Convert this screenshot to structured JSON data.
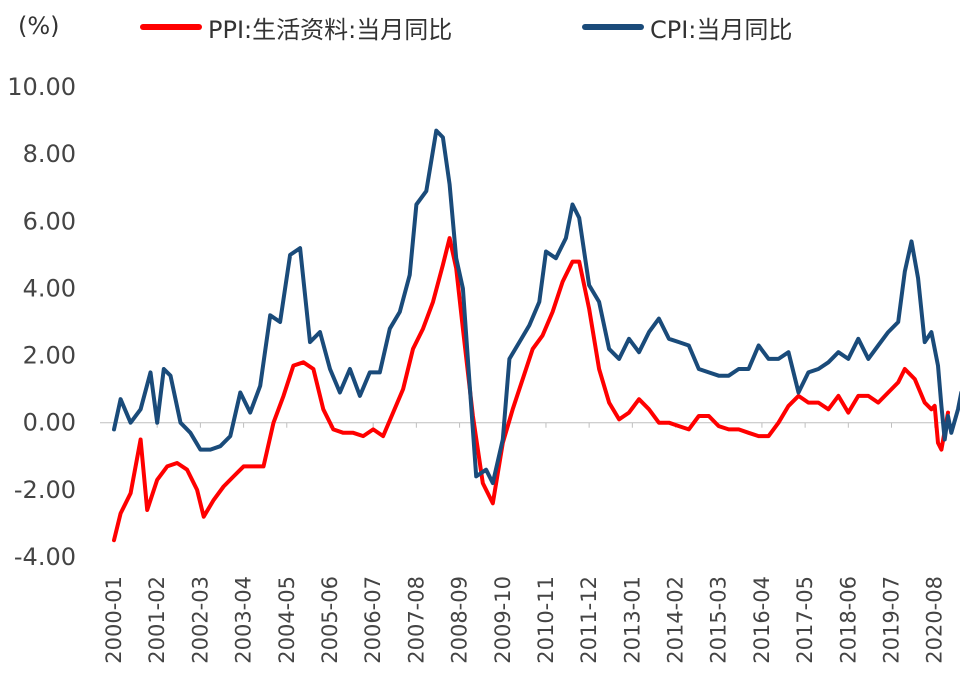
{
  "chart_data": {
    "type": "line",
    "title": "",
    "unit_label": "(%)",
    "xlabel": "",
    "ylabel": "",
    "ylim": [
      -4,
      10
    ],
    "yticks": [
      "10.00",
      "8.00",
      "6.00",
      "4.00",
      "2.00",
      "0.00",
      "-2.00",
      "-4.00"
    ],
    "x_tick_labels": [
      "2000-01",
      "2001-02",
      "2002-03",
      "2003-04",
      "2004-05",
      "2005-06",
      "2006-07",
      "2007-08",
      "2008-09",
      "2009-10",
      "2010-11",
      "2011-12",
      "2013-01",
      "2014-02",
      "2015-03",
      "2016-04",
      "2017-05",
      "2018-06",
      "2019-07",
      "2020-08"
    ],
    "x_start": "2000-01",
    "x_end": "2020-12",
    "grid": false,
    "legend_position": "top",
    "series": [
      {
        "name": "PPI:生活资料:当月同比",
        "color": "#ff0000",
        "points": [
          [
            "2000-01",
            -3.5
          ],
          [
            "2000-03",
            -2.7
          ],
          [
            "2000-06",
            -2.1
          ],
          [
            "2000-09",
            -0.5
          ],
          [
            "2000-11",
            -2.6
          ],
          [
            "2001-02",
            -1.7
          ],
          [
            "2001-05",
            -1.3
          ],
          [
            "2001-08",
            -1.2
          ],
          [
            "2001-11",
            -1.4
          ],
          [
            "2002-02",
            -2.0
          ],
          [
            "2002-04",
            -2.8
          ],
          [
            "2002-07",
            -2.3
          ],
          [
            "2002-10",
            -1.9
          ],
          [
            "2003-01",
            -1.6
          ],
          [
            "2003-04",
            -1.3
          ],
          [
            "2003-07",
            -1.3
          ],
          [
            "2003-10",
            -1.3
          ],
          [
            "2004-01",
            0.0
          ],
          [
            "2004-04",
            0.8
          ],
          [
            "2004-07",
            1.7
          ],
          [
            "2004-10",
            1.8
          ],
          [
            "2005-01",
            1.6
          ],
          [
            "2005-04",
            0.4
          ],
          [
            "2005-07",
            -0.2
          ],
          [
            "2005-10",
            -0.3
          ],
          [
            "2006-01",
            -0.3
          ],
          [
            "2006-04",
            -0.4
          ],
          [
            "2006-07",
            -0.2
          ],
          [
            "2006-10",
            -0.4
          ],
          [
            "2007-01",
            0.3
          ],
          [
            "2007-04",
            1.0
          ],
          [
            "2007-07",
            2.2
          ],
          [
            "2007-10",
            2.8
          ],
          [
            "2008-01",
            3.6
          ],
          [
            "2008-04",
            4.7
          ],
          [
            "2008-06",
            5.5
          ],
          [
            "2008-08",
            4.6
          ],
          [
            "2008-10",
            2.8
          ],
          [
            "2009-01",
            0.2
          ],
          [
            "2009-04",
            -1.8
          ],
          [
            "2009-07",
            -2.4
          ],
          [
            "2009-10",
            -0.6
          ],
          [
            "2010-01",
            0.4
          ],
          [
            "2010-04",
            1.3
          ],
          [
            "2010-07",
            2.2
          ],
          [
            "2010-10",
            2.6
          ],
          [
            "2011-01",
            3.3
          ],
          [
            "2011-04",
            4.2
          ],
          [
            "2011-07",
            4.8
          ],
          [
            "2011-09",
            4.8
          ],
          [
            "2011-12",
            3.4
          ],
          [
            "2012-03",
            1.6
          ],
          [
            "2012-06",
            0.6
          ],
          [
            "2012-09",
            0.1
          ],
          [
            "2012-12",
            0.3
          ],
          [
            "2013-03",
            0.7
          ],
          [
            "2013-06",
            0.4
          ],
          [
            "2013-09",
            0.0
          ],
          [
            "2013-12",
            0.0
          ],
          [
            "2014-03",
            -0.1
          ],
          [
            "2014-06",
            -0.2
          ],
          [
            "2014-09",
            0.2
          ],
          [
            "2014-12",
            0.2
          ],
          [
            "2015-03",
            -0.1
          ],
          [
            "2015-06",
            -0.2
          ],
          [
            "2015-09",
            -0.2
          ],
          [
            "2015-12",
            -0.3
          ],
          [
            "2016-03",
            -0.4
          ],
          [
            "2016-06",
            -0.4
          ],
          [
            "2016-09",
            0.0
          ],
          [
            "2016-12",
            0.5
          ],
          [
            "2017-03",
            0.8
          ],
          [
            "2017-06",
            0.6
          ],
          [
            "2017-09",
            0.6
          ],
          [
            "2017-12",
            0.4
          ],
          [
            "2018-03",
            0.8
          ],
          [
            "2018-06",
            0.3
          ],
          [
            "2018-09",
            0.8
          ],
          [
            "2018-12",
            0.8
          ],
          [
            "2019-03",
            0.6
          ],
          [
            "2019-06",
            0.9
          ],
          [
            "2019-09",
            1.2
          ],
          [
            "2019-11",
            1.6
          ],
          [
            "2020-02",
            1.3
          ],
          [
            "2020-05",
            0.6
          ],
          [
            "2020-07",
            0.4
          ],
          [
            "2020-08",
            0.5
          ],
          [
            "2020-09",
            -0.6
          ],
          [
            "2020-10",
            -0.8
          ],
          [
            "2020-12",
            0.3
          ]
        ]
      },
      {
        "name": "CPI:当月同比",
        "color": "#1a4b7a",
        "points": [
          [
            "2000-01",
            -0.2
          ],
          [
            "2000-03",
            0.7
          ],
          [
            "2000-06",
            0.0
          ],
          [
            "2000-09",
            0.4
          ],
          [
            "2000-12",
            1.5
          ],
          [
            "2001-02",
            0.0
          ],
          [
            "2001-04",
            1.6
          ],
          [
            "2001-06",
            1.4
          ],
          [
            "2001-09",
            0.0
          ],
          [
            "2001-12",
            -0.3
          ],
          [
            "2002-03",
            -0.8
          ],
          [
            "2002-06",
            -0.8
          ],
          [
            "2002-09",
            -0.7
          ],
          [
            "2002-12",
            -0.4
          ],
          [
            "2003-03",
            0.9
          ],
          [
            "2003-06",
            0.3
          ],
          [
            "2003-09",
            1.1
          ],
          [
            "2003-12",
            3.2
          ],
          [
            "2004-03",
            3.0
          ],
          [
            "2004-06",
            5.0
          ],
          [
            "2004-09",
            5.2
          ],
          [
            "2004-12",
            2.4
          ],
          [
            "2005-03",
            2.7
          ],
          [
            "2005-06",
            1.6
          ],
          [
            "2005-09",
            0.9
          ],
          [
            "2005-12",
            1.6
          ],
          [
            "2006-03",
            0.8
          ],
          [
            "2006-06",
            1.5
          ],
          [
            "2006-09",
            1.5
          ],
          [
            "2006-12",
            2.8
          ],
          [
            "2007-03",
            3.3
          ],
          [
            "2007-06",
            4.4
          ],
          [
            "2007-08",
            6.5
          ],
          [
            "2007-11",
            6.9
          ],
          [
            "2008-02",
            8.7
          ],
          [
            "2008-04",
            8.5
          ],
          [
            "2008-06",
            7.1
          ],
          [
            "2008-08",
            4.9
          ],
          [
            "2008-10",
            4.0
          ],
          [
            "2008-12",
            1.2
          ],
          [
            "2009-02",
            -1.6
          ],
          [
            "2009-05",
            -1.4
          ],
          [
            "2009-07",
            -1.8
          ],
          [
            "2009-10",
            -0.5
          ],
          [
            "2009-12",
            1.9
          ],
          [
            "2010-03",
            2.4
          ],
          [
            "2010-06",
            2.9
          ],
          [
            "2010-09",
            3.6
          ],
          [
            "2010-11",
            5.1
          ],
          [
            "2011-02",
            4.9
          ],
          [
            "2011-05",
            5.5
          ],
          [
            "2011-07",
            6.5
          ],
          [
            "2011-09",
            6.1
          ],
          [
            "2011-12",
            4.1
          ],
          [
            "2012-03",
            3.6
          ],
          [
            "2012-06",
            2.2
          ],
          [
            "2012-09",
            1.9
          ],
          [
            "2012-12",
            2.5
          ],
          [
            "2013-03",
            2.1
          ],
          [
            "2013-06",
            2.7
          ],
          [
            "2013-09",
            3.1
          ],
          [
            "2013-12",
            2.5
          ],
          [
            "2014-03",
            2.4
          ],
          [
            "2014-06",
            2.3
          ],
          [
            "2014-09",
            1.6
          ],
          [
            "2014-12",
            1.5
          ],
          [
            "2015-03",
            1.4
          ],
          [
            "2015-06",
            1.4
          ],
          [
            "2015-09",
            1.6
          ],
          [
            "2015-12",
            1.6
          ],
          [
            "2016-03",
            2.3
          ],
          [
            "2016-06",
            1.9
          ],
          [
            "2016-09",
            1.9
          ],
          [
            "2016-12",
            2.1
          ],
          [
            "2017-03",
            0.9
          ],
          [
            "2017-06",
            1.5
          ],
          [
            "2017-09",
            1.6
          ],
          [
            "2017-12",
            1.8
          ],
          [
            "2018-03",
            2.1
          ],
          [
            "2018-06",
            1.9
          ],
          [
            "2018-09",
            2.5
          ],
          [
            "2018-12",
            1.9
          ],
          [
            "2019-03",
            2.3
          ],
          [
            "2019-06",
            2.7
          ],
          [
            "2019-09",
            3.0
          ],
          [
            "2019-11",
            4.5
          ],
          [
            "2020-01",
            5.4
          ],
          [
            "2020-03",
            4.3
          ],
          [
            "2020-05",
            2.4
          ],
          [
            "2020-07",
            2.7
          ],
          [
            "2020-09",
            1.7
          ],
          [
            "2020-10",
            0.5
          ],
          [
            "2020-11",
            -0.5
          ],
          [
            "2020-12",
            0.2
          ],
          [
            "2021-01",
            -0.3
          ],
          [
            "2021-03",
            0.4
          ],
          [
            "2021-04",
            0.9
          ]
        ]
      }
    ]
  }
}
